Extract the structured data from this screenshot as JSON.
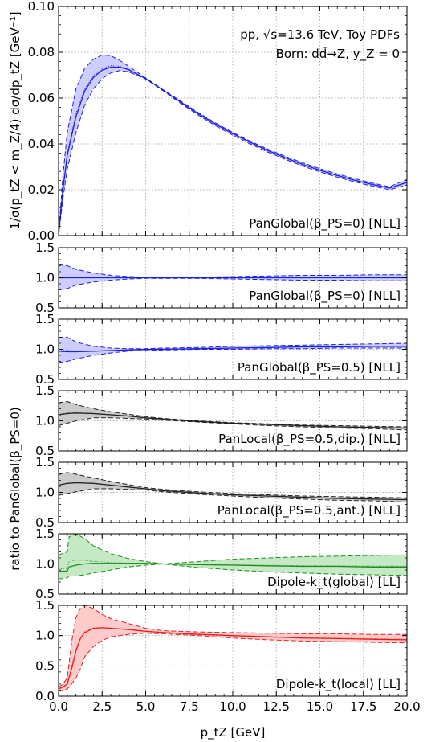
{
  "chart_data": {
    "type": "line",
    "xlabel": "p_tZ [GeV]",
    "xlim": [
      0,
      20
    ],
    "xticks": [
      "0.0",
      "2.5",
      "5.0",
      "7.5",
      "10.0",
      "12.5",
      "15.0",
      "17.5",
      "20.0"
    ],
    "grid": true,
    "shared_ylabel": "ratio to PanGlobal(β_PS=0)",
    "annotations": [
      "pp, √s=13.6 TeV, Toy PDFs",
      "Born: dd̄→Z, y_Z = 0"
    ],
    "panels": [
      {
        "label": "PanGlobal(β_PS=0) [NLL]",
        "ylabel": "1/σ(p_tZ < m_Z/4) dσ/dp_tZ [GeV⁻¹]",
        "ylim": [
          0,
          0.1
        ],
        "yticks": [
          "0.00",
          "0.02",
          "0.04",
          "0.06",
          "0.08",
          "0.10"
        ],
        "color": "#1f1fe0",
        "fill": "#c8c8ff",
        "x": [
          0,
          0.25,
          0.5,
          1,
          1.5,
          2,
          2.5,
          3,
          3.5,
          4,
          5,
          6,
          7,
          8,
          9,
          10,
          11,
          12,
          13,
          14,
          15,
          16,
          17,
          18,
          19,
          20
        ],
        "central": [
          0,
          0.02,
          0.035,
          0.052,
          0.063,
          0.069,
          0.0722,
          0.0735,
          0.0735,
          0.0725,
          0.0685,
          0.0635,
          0.0583,
          0.0533,
          0.0487,
          0.0445,
          0.0407,
          0.0372,
          0.034,
          0.0311,
          0.0285,
          0.0262,
          0.0241,
          0.0223,
          0.0207,
          0.0232
        ],
        "upper": [
          0,
          0.026,
          0.045,
          0.064,
          0.073,
          0.077,
          0.0788,
          0.0785,
          0.0765,
          0.074,
          0.0688,
          0.0637,
          0.0587,
          0.0538,
          0.0492,
          0.045,
          0.0412,
          0.0378,
          0.0346,
          0.0318,
          0.0292,
          0.0269,
          0.0248,
          0.0229,
          0.0213,
          0.0245
        ],
        "lower": [
          0,
          0.016,
          0.029,
          0.045,
          0.057,
          0.064,
          0.0685,
          0.071,
          0.072,
          0.0715,
          0.0683,
          0.0632,
          0.0578,
          0.0527,
          0.048,
          0.0438,
          0.04,
          0.0365,
          0.0333,
          0.0304,
          0.0278,
          0.0255,
          0.0234,
          0.0216,
          0.02,
          0.0221
        ]
      },
      {
        "label": "PanGlobal(β_PS=0) [NLL]",
        "ylim": [
          0.5,
          1.5
        ],
        "yticks": [
          "0.5",
          "1.0",
          "1.5"
        ],
        "color": "#1f1fe0",
        "fill": "#c8c8ff",
        "x": [
          0,
          0.5,
          1,
          2,
          3,
          4,
          5,
          6,
          8,
          10,
          12,
          14,
          16,
          18,
          20
        ],
        "central": [
          1,
          1,
          1,
          1,
          1,
          1,
          1,
          1,
          1,
          1,
          1,
          1,
          1,
          1,
          1
        ],
        "upper": [
          1.22,
          1.2,
          1.14,
          1.08,
          1.04,
          1.02,
          1.01,
          1.01,
          1.01,
          1.02,
          1.03,
          1.04,
          1.04,
          1.05,
          1.05
        ],
        "lower": [
          0.8,
          0.82,
          0.88,
          0.93,
          0.96,
          0.98,
          0.99,
          0.99,
          0.99,
          0.98,
          0.97,
          0.96,
          0.96,
          0.95,
          0.95
        ]
      },
      {
        "label": "PanGlobal(β_PS=0.5) [NLL]",
        "ylim": [
          0.5,
          1.5
        ],
        "yticks": [
          "0.5",
          "1.0",
          "1.5"
        ],
        "color": "#1f1fe0",
        "fill": "#c8c8ff",
        "x": [
          0,
          0.5,
          1,
          2,
          3,
          4,
          5,
          6,
          8,
          10,
          12,
          14,
          16,
          18,
          20
        ],
        "central": [
          0.97,
          0.96,
          0.96,
          0.97,
          0.98,
          0.99,
          1,
          1,
          1.01,
          1.02,
          1.03,
          1.04,
          1.04,
          1.05,
          1.05
        ],
        "upper": [
          1.2,
          1.2,
          1.12,
          1.05,
          1.02,
          1.01,
          1.01,
          1.02,
          1.03,
          1.05,
          1.06,
          1.07,
          1.08,
          1.09,
          1.1
        ],
        "lower": [
          0.78,
          0.8,
          0.84,
          0.9,
          0.94,
          0.97,
          0.98,
          0.99,
          1,
          1,
          1.01,
          1.01,
          1.02,
          1.02,
          1.02
        ]
      },
      {
        "label": "PanLocal(β_PS=0.5,dip.) [NLL]",
        "ylim": [
          0.5,
          1.5
        ],
        "yticks": [
          "0.5",
          "1.0",
          "1.5"
        ],
        "color": "#222222",
        "fill": "#c4c4c4",
        "x": [
          0,
          0.5,
          1,
          2,
          3,
          4,
          5,
          6,
          8,
          10,
          12,
          14,
          16,
          18,
          20
        ],
        "central": [
          1.1,
          1.12,
          1.13,
          1.12,
          1.1,
          1.08,
          1.05,
          1.03,
          0.99,
          0.96,
          0.94,
          0.92,
          0.9,
          0.89,
          0.88
        ],
        "upper": [
          1.3,
          1.32,
          1.27,
          1.2,
          1.15,
          1.11,
          1.07,
          1.04,
          1,
          0.97,
          0.95,
          0.93,
          0.92,
          0.91,
          0.9
        ],
        "lower": [
          0.92,
          0.96,
          1.0,
          1.05,
          1.05,
          1.04,
          1.03,
          1.01,
          0.98,
          0.95,
          0.92,
          0.9,
          0.88,
          0.87,
          0.85
        ]
      },
      {
        "label": "PanLocal(β_PS=0.5,ant.) [NLL]",
        "ylim": [
          0.5,
          1.5
        ],
        "yticks": [
          "0.5",
          "1.0",
          "1.5"
        ],
        "color": "#222222",
        "fill": "#c4c4c4",
        "x": [
          0,
          0.5,
          1,
          2,
          3,
          4,
          5,
          6,
          8,
          10,
          12,
          14,
          16,
          18,
          20
        ],
        "central": [
          1.12,
          1.15,
          1.16,
          1.15,
          1.12,
          1.09,
          1.06,
          1.03,
          0.99,
          0.96,
          0.94,
          0.92,
          0.9,
          0.89,
          0.88
        ],
        "upper": [
          1.3,
          1.33,
          1.3,
          1.24,
          1.18,
          1.13,
          1.08,
          1.05,
          1.01,
          0.98,
          0.96,
          0.94,
          0.93,
          0.92,
          0.91
        ],
        "lower": [
          0.95,
          0.98,
          1.01,
          1.06,
          1.06,
          1.05,
          1.04,
          1.01,
          0.97,
          0.94,
          0.91,
          0.89,
          0.87,
          0.86,
          0.84
        ]
      },
      {
        "label": "Dipole-k_t(global) [LL]",
        "ylim": [
          0.5,
          1.5
        ],
        "yticks": [
          "0.5",
          "1.0",
          "1.5"
        ],
        "color": "#1e8c1e",
        "fill": "#bfe6bf",
        "x": [
          0,
          0.5,
          0.6,
          1,
          1.5,
          2,
          3,
          4,
          5,
          6,
          8,
          10,
          12,
          14,
          16,
          18,
          20
        ],
        "central": [
          0.88,
          0.88,
          0.95,
          0.98,
          1,
          1.01,
          1.01,
          1.01,
          1.01,
          1.0,
          0.99,
          0.98,
          0.97,
          0.96,
          0.96,
          0.95,
          0.95
        ],
        "upper": [
          1.15,
          1.2,
          1.45,
          1.5,
          1.42,
          1.3,
          1.17,
          1.09,
          1.04,
          1.0,
          1.04,
          1.08,
          1.1,
          1.12,
          1.13,
          1.14,
          1.15
        ],
        "lower": [
          0.75,
          0.77,
          0.8,
          0.8,
          0.82,
          0.85,
          0.9,
          0.95,
          0.98,
          1.0,
          0.94,
          0.9,
          0.87,
          0.85,
          0.83,
          0.82,
          0.81
        ]
      },
      {
        "label": "Dipole-k_t(local) [LL]",
        "ylim": [
          0,
          1.5
        ],
        "yticks": [
          "0.0",
          "0.5",
          "1.0",
          "1.5"
        ],
        "color": "#e02020",
        "fill": "#ffc4c4",
        "x": [
          0,
          0.25,
          0.5,
          0.75,
          1,
          1.25,
          1.5,
          2,
          2.5,
          3,
          4,
          5,
          6,
          8,
          10,
          12,
          14,
          16,
          18,
          20
        ],
        "central": [
          0.12,
          0.15,
          0.2,
          0.45,
          0.75,
          0.95,
          1.05,
          1.12,
          1.13,
          1.12,
          1.1,
          1.07,
          1.05,
          1.02,
          1.0,
          0.98,
          0.96,
          0.95,
          0.94,
          0.93
        ],
        "upper": [
          0.15,
          0.2,
          0.3,
          0.9,
          1.3,
          1.45,
          1.5,
          1.45,
          1.35,
          1.28,
          1.2,
          1.12,
          1.08,
          1.06,
          1.05,
          1.04,
          1.03,
          1.03,
          1.02,
          1.02
        ],
        "lower": [
          0.08,
          0.1,
          0.12,
          0.2,
          0.3,
          0.45,
          0.65,
          0.82,
          0.92,
          0.98,
          1.02,
          1.04,
          1.03,
          1.0,
          0.96,
          0.93,
          0.91,
          0.9,
          0.89,
          0.88
        ]
      }
    ]
  }
}
